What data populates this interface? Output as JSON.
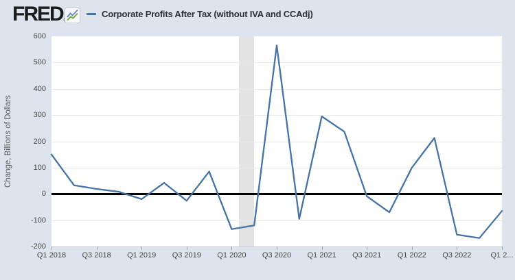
{
  "header": {
    "logo_text": "FRED",
    "logo_registered": "®",
    "logo_icon": {
      "line1_color": "#6d8fc3",
      "line2_color": "#7fa845",
      "bg": "#f6f8f9",
      "border": "#c3c9cf"
    },
    "legend": {
      "series_label": "Corporate Profits After Tax (without IVA and CCAdj)"
    }
  },
  "chart_data": {
    "type": "line",
    "title": "Corporate Profits After Tax (without IVA and CCAdj)",
    "xlabel": "",
    "ylabel": "Change, Billions of Dollars",
    "x": [
      "Q1 2018",
      "Q2 2018",
      "Q3 2018",
      "Q4 2018",
      "Q1 2019",
      "Q2 2019",
      "Q3 2019",
      "Q4 2019",
      "Q1 2020",
      "Q2 2020",
      "Q3 2020",
      "Q4 2020",
      "Q1 2021",
      "Q2 2021",
      "Q3 2021",
      "Q4 2021",
      "Q1 2022",
      "Q2 2022",
      "Q3 2022",
      "Q4 2022",
      "Q1 2023"
    ],
    "values": [
      150,
      33,
      19,
      8,
      -20,
      42,
      -26,
      85,
      -134,
      -120,
      565,
      -95,
      295,
      237,
      -9,
      -70,
      100,
      213,
      -155,
      -168,
      -65
    ],
    "ylim": [
      -200,
      600
    ],
    "ytick_step": 100,
    "ytick_labels": [
      "600",
      "500",
      "400",
      "300",
      "200",
      "100",
      "0",
      "-100",
      "-200"
    ],
    "xtick_every": 2,
    "xtick_labels": [
      "Q1 2018",
      "Q3 2018",
      "Q1 2019",
      "Q3 2019",
      "Q1 2020",
      "Q3 2020",
      "Q1 2021",
      "Q3 2021",
      "Q1 2022",
      "Q3 2022",
      "Q1 2..."
    ],
    "grid": true,
    "legend_position": "top",
    "zero_line": true,
    "recession_band": {
      "start_quarter_index": 8.33,
      "end_quarter_index": 9.0
    },
    "colors": {
      "line": "#4572a7",
      "page_bg": "#dde4ee",
      "plot_bg": "#ffffff",
      "grid": "#e8e8e8",
      "zero_line": "#000000",
      "recession_band": "#e3e3e3",
      "tick_text": "#444444",
      "axis_line": "#c6ccd5",
      "tick_mark": "#9aa0a8"
    }
  }
}
